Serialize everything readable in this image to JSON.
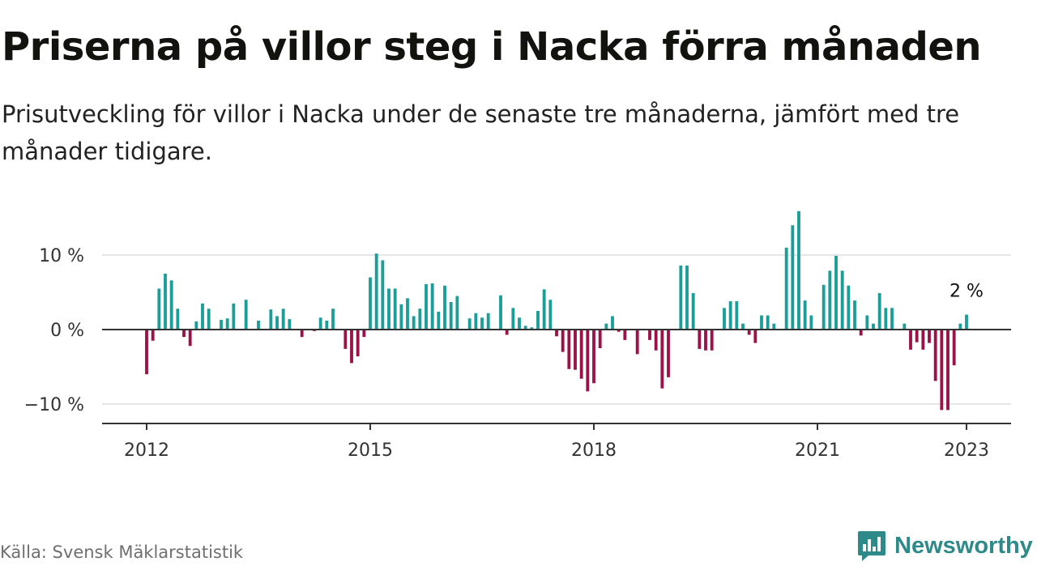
{
  "title": "Priserna på villor steg i Nacka förra månaden",
  "subtitle": "Prisutveckling för villor i Nacka under de senaste tre månaderna, jämfört med tre månader tidigare.",
  "source": "Källa: Svensk Mäklarstatistik",
  "brand": "Newsworthy",
  "colors": {
    "positive": "#1b9e98",
    "negative": "#9c1148",
    "axis": "#333333",
    "grid": "#dddddd",
    "brand": "#2e8a88"
  },
  "chart_data": {
    "type": "bar",
    "title": "Priserna på villor steg i Nacka förra månaden",
    "x_unit": "month",
    "x_start": "2012-01",
    "x_end": "2023-01",
    "x_ticks": [
      "2012",
      "2015",
      "2018",
      "2021",
      "2023"
    ],
    "x_tick_positions": [
      "2012-01",
      "2015-01",
      "2018-01",
      "2021-01",
      "2023-01"
    ],
    "y_ticks": [
      "10 %",
      "0 %",
      "−10 %"
    ],
    "y_tick_values": [
      10,
      0,
      -10
    ],
    "ylim": [
      -13,
      18
    ],
    "grid": true,
    "annotation": {
      "text": "2 %",
      "x": "2023-01"
    },
    "values": [
      -6,
      -1.5,
      5.5,
      7.5,
      6.6,
      2.8,
      -1,
      -2.2,
      1.1,
      3.5,
      2.8,
      0,
      1.3,
      1.5,
      3.5,
      0,
      4,
      0,
      1.2,
      0,
      2.7,
      1.8,
      2.8,
      1.4,
      0,
      -1,
      0,
      -0.2,
      1.6,
      1.2,
      2.8,
      0,
      -2.6,
      -4.5,
      -3.6,
      -1,
      7,
      10.2,
      9.3,
      5.5,
      5.5,
      3.4,
      4.2,
      1.8,
      2.8,
      6.1,
      6.2,
      2.4,
      5.9,
      3.7,
      4.5,
      0,
      1.5,
      2.2,
      1.6,
      2.2,
      0,
      4.6,
      -0.7,
      2.9,
      1.6,
      0.5,
      0.3,
      2.5,
      5.4,
      4,
      -0.9,
      -3,
      -5.3,
      -5.4,
      -6.6,
      -8.3,
      -7.2,
      -2.5,
      0.8,
      1.8,
      -0.3,
      -1.4,
      0,
      -3.3,
      0,
      -1.4,
      -2.8,
      -7.9,
      -6.4,
      0,
      8.6,
      8.6,
      4.9,
      -2.6,
      -2.8,
      -2.8,
      0,
      2.9,
      3.8,
      3.8,
      0.8,
      -0.7,
      -1.8,
      1.9,
      1.9,
      0.8,
      0,
      11,
      14,
      15.9,
      3.9,
      1.9,
      0,
      6,
      7.9,
      9.9,
      7.9,
      5.9,
      3.9,
      -0.8,
      1.9,
      0.8,
      4.9,
      2.9,
      2.9,
      0,
      0.8,
      -2.7,
      -1.7,
      -2.7,
      -1.8,
      -6.9,
      -10.8,
      -10.8,
      -4.8,
      0.8,
      2
    ]
  }
}
